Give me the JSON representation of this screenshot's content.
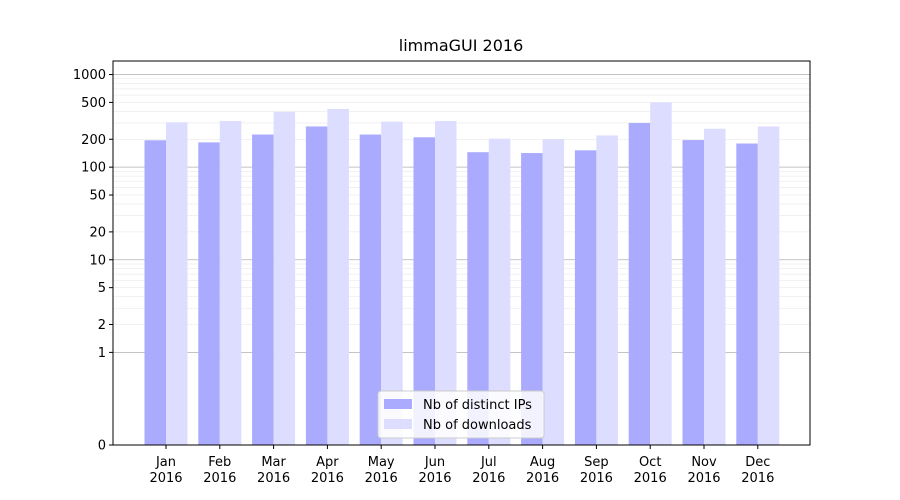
{
  "chart_data": {
    "type": "bar",
    "title": "limmaGUI 2016",
    "xlabel": "",
    "ylabel": "",
    "yscale": "symlog",
    "ylim": [
      0,
      1400
    ],
    "grid": true,
    "legend_position": "bottom-center",
    "categories": [
      [
        "Jan",
        "2016"
      ],
      [
        "Feb",
        "2016"
      ],
      [
        "Mar",
        "2016"
      ],
      [
        "Apr",
        "2016"
      ],
      [
        "May",
        "2016"
      ],
      [
        "Jun",
        "2016"
      ],
      [
        "Jul",
        "2016"
      ],
      [
        "Aug",
        "2016"
      ],
      [
        "Sep",
        "2016"
      ],
      [
        "Oct",
        "2016"
      ],
      [
        "Nov",
        "2016"
      ],
      [
        "Dec",
        "2016"
      ]
    ],
    "yticks": [
      "0",
      "1",
      "2",
      "5",
      "10",
      "20",
      "50",
      "100",
      "200",
      "500",
      "1000"
    ],
    "series": [
      {
        "name": "Nb of distinct IPs",
        "color": "#aaaaff",
        "values": [
          195,
          185,
          225,
          275,
          225,
          210,
          145,
          142,
          152,
          300,
          196,
          180
        ]
      },
      {
        "name": "Nb of downloads",
        "color": "#ddddff",
        "values": [
          305,
          315,
          395,
          425,
          310,
          315,
          203,
          200,
          220,
          500,
          260,
          275
        ]
      }
    ]
  }
}
